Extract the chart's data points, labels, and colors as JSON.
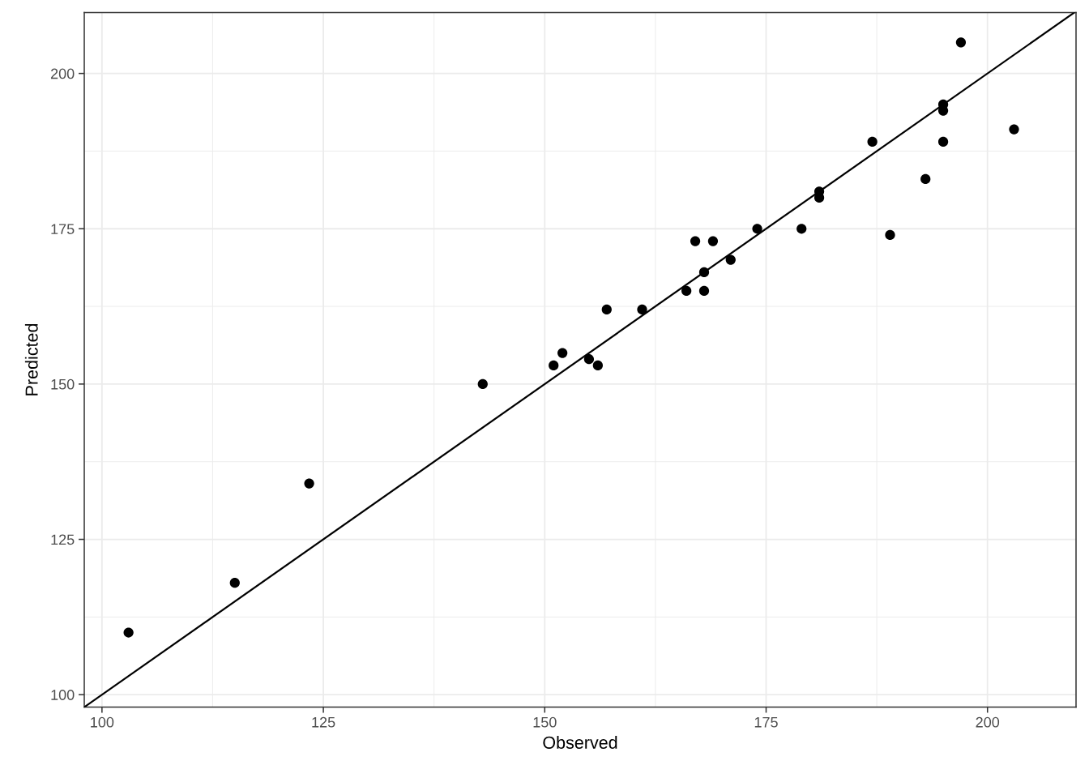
{
  "chart_data": {
    "type": "scatter",
    "xlabel": "Observed",
    "ylabel": "Predicted",
    "xlim": [
      98,
      210
    ],
    "ylim": [
      98,
      209.8
    ],
    "xticks": [
      100,
      {
        "value": 112.5,
        "label": null
      },
      125,
      {
        "value": 137.5,
        "label": null
      },
      150,
      {
        "value": 162.5,
        "label": null
      },
      175,
      {
        "value": 187.5,
        "label": null
      },
      200
    ],
    "yticks": [
      100,
      {
        "value": 112.5,
        "label": null
      },
      125,
      {
        "value": 137.5,
        "label": null
      },
      150,
      {
        "value": 162.5,
        "label": null
      },
      175,
      {
        "value": 187.5,
        "label": null
      },
      200
    ],
    "grid": true,
    "series": [
      {
        "color": "#000000",
        "marker": "circle",
        "x": [
          103,
          115,
          123.4,
          143,
          151,
          152,
          155,
          156,
          157,
          161,
          166,
          167,
          168,
          168,
          169,
          171,
          174,
          179,
          181,
          181,
          187,
          189,
          193,
          195,
          195,
          195,
          197,
          203
        ],
        "values": [
          110,
          118,
          134,
          150,
          153,
          155,
          154,
          153,
          162,
          162,
          165,
          173,
          168,
          165,
          173,
          170,
          175,
          175,
          181,
          180,
          189,
          174,
          183,
          195,
          194,
          189,
          205,
          191
        ]
      },
      {
        "type": "line",
        "color": "#000000",
        "line_style": "solid",
        "x": [
          98,
          209.8
        ],
        "values": [
          98,
          209.8
        ]
      }
    ]
  }
}
